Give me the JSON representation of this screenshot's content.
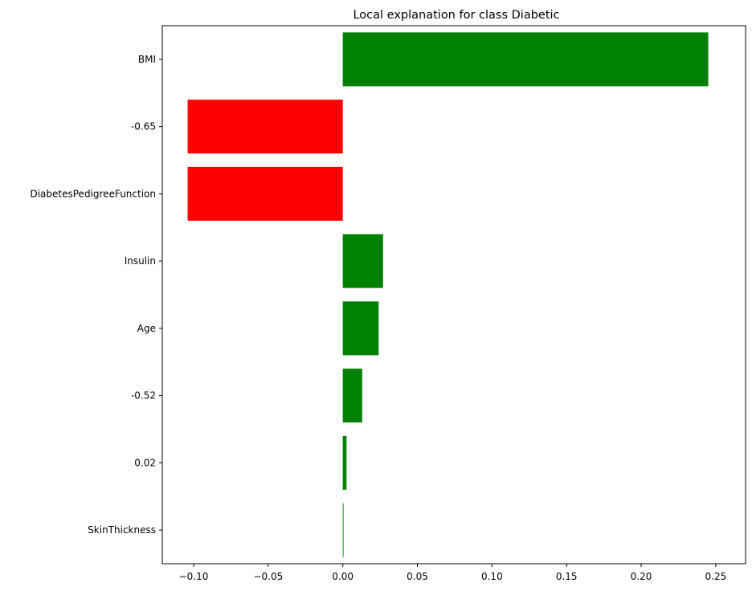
{
  "chart_data": {
    "type": "bar",
    "orientation": "horizontal",
    "title": "Local explanation for class Diabetic",
    "xlabel": "",
    "ylabel": "",
    "categories": [
      "BMI",
      "-0.65",
      "DiabetesPedigreeFunction",
      "Insulin",
      "Age",
      "-0.52",
      "0.02",
      "SkinThickness"
    ],
    "values": [
      0.245,
      -0.104,
      -0.104,
      0.027,
      0.024,
      0.013,
      0.0025,
      0.0005
    ],
    "xlim": [
      -0.121,
      0.27
    ],
    "xticks": [
      -0.1,
      -0.05,
      0.0,
      0.05,
      0.1,
      0.15,
      0.2,
      0.25
    ],
    "xtick_labels": [
      "−0.10",
      "−0.05",
      "0.00",
      "0.05",
      "0.10",
      "0.15",
      "0.20",
      "0.25"
    ],
    "colors": {
      "positive": "#008000",
      "negative": "#ff0000"
    },
    "grid": false,
    "legend": "none"
  }
}
